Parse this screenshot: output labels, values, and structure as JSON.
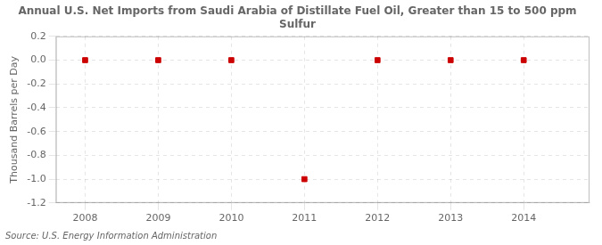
{
  "chart_data": {
    "type": "scatter",
    "title": "Annual U.S. Net Imports from Saudi Arabia of Distillate Fuel Oil, Greater than 15 to 500 ppm\nSulfur",
    "ylabel": "Thousand Barrels per Day",
    "source": "Source: U.S. Energy Information Administration",
    "x": [
      2008,
      2009,
      2010,
      2011,
      2012,
      2013,
      2014
    ],
    "values": [
      0.0,
      0.0,
      0.0,
      -1.0,
      0.0,
      0.0,
      0.0
    ],
    "color": "#cc0000",
    "marker": "square",
    "line_style": "none",
    "xlim": [
      2007.6,
      2014.9
    ],
    "xticks": [
      2008,
      2009,
      2010,
      2011,
      2012,
      2013,
      2014
    ],
    "ylim": [
      -1.2,
      0.2
    ],
    "yticks": [
      0.2,
      {
        "value": 0.0,
        "label": "0.0"
      },
      -0.2,
      -0.4,
      -0.6,
      -0.8,
      {
        "value": -1.0,
        "label": "-1.0"
      },
      -1.2
    ],
    "grid": true
  }
}
